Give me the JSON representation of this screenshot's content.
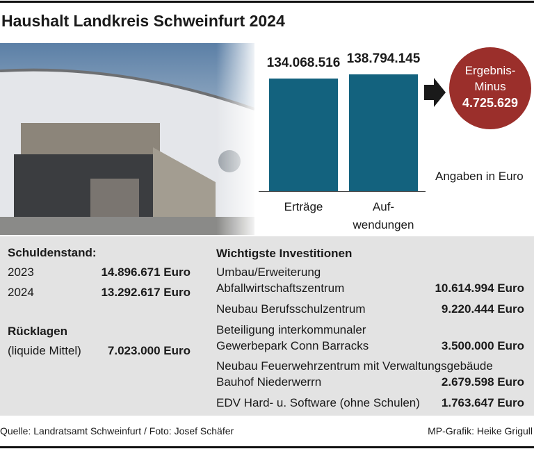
{
  "title": "Haushalt Landkreis Schweinfurt 2024",
  "chart_data": {
    "type": "bar",
    "categories": [
      "Erträge",
      "Auf-\nwendungen"
    ],
    "values": [
      134068516,
      138794145
    ],
    "value_labels": [
      "134.068.516",
      "138.794.145"
    ],
    "color": "#13627e"
  },
  "result": {
    "label": "Ergebnis-\nMinus",
    "value": "4.725.629"
  },
  "unit_note": "Angaben in Euro",
  "debt": {
    "heading": "Schuldenstand:",
    "rows": [
      [
        "2023",
        "14.896.671 Euro"
      ],
      [
        "2024",
        "13.292.617 Euro"
      ]
    ]
  },
  "reserves": {
    "heading": "Rücklagen",
    "label": "(liquide Mittel)",
    "amount": "7.023.000 Euro"
  },
  "investments": {
    "heading": "Wichtigste Investitionen",
    "items": [
      [
        "Umbau/Erweiterung\nAbfallwirtschaftszentrum",
        "10.614.994 Euro"
      ],
      [
        "Neubau Berufsschulzentrum",
        "9.220.444 Euro"
      ],
      [
        "Beteiligung interkommunaler\nGewerbepark Conn Barracks",
        "3.500.000 Euro"
      ],
      [
        "Neubau Feuerwehrzentrum mit Verwaltungsgebäude\nBauhof Niederwerrn",
        "2.679.598 Euro"
      ],
      [
        "EDV Hard- u. Software (ohne Schulen)",
        "1.763.647 Euro"
      ]
    ]
  },
  "footer": {
    "source": "Quelle: Landratsamt Schweinfurt / Foto: Josef Schäfer",
    "credit": "MP-Grafik: Heike Grigull"
  }
}
